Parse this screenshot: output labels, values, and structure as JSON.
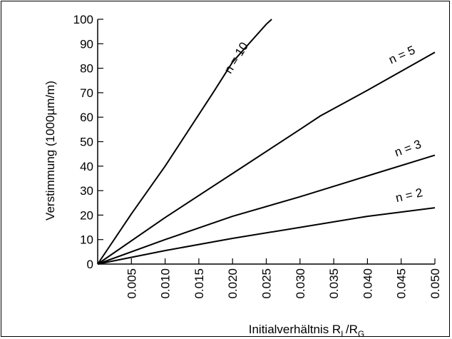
{
  "chart_data": {
    "type": "line",
    "xlabel": "Initialverhältnis R",
    "xlabel_sub1": "L",
    "xlabel_slash": "/R",
    "xlabel_sub2": "G",
    "ylabel": "Verstimmung (1000µm/m)",
    "xlim": [
      0,
      0.05
    ],
    "ylim": [
      0,
      100
    ],
    "x_ticks": [
      "0.005",
      "0.010",
      "0.015",
      "0.020",
      "0.025",
      "0.030",
      "0.035",
      "0.040",
      "0.045",
      "0.050"
    ],
    "x_tick_values": [
      0.005,
      0.01,
      0.015,
      0.02,
      0.025,
      0.03,
      0.035,
      0.04,
      0.045,
      0.05
    ],
    "y_ticks": [
      "0",
      "10",
      "20",
      "30",
      "40",
      "50",
      "60",
      "70",
      "80",
      "90",
      "100"
    ],
    "y_tick_values": [
      0,
      10,
      20,
      30,
      40,
      50,
      60,
      70,
      80,
      90,
      100
    ],
    "grid": false,
    "legend": "none",
    "series": [
      {
        "name": "n = 2",
        "x": [
          0,
          0.01,
          0.02,
          0.03,
          0.04,
          0.05
        ],
        "y": [
          0,
          5.5,
          10.5,
          15,
          19.5,
          23
        ]
      },
      {
        "name": "n = 3",
        "x": [
          0,
          0.01,
          0.02,
          0.03,
          0.04,
          0.05
        ],
        "y": [
          0,
          10,
          19.5,
          27.5,
          36,
          44.5
        ]
      },
      {
        "name": "n = 5",
        "x": [
          0,
          0.01,
          0.02,
          0.03,
          0.033,
          0.04,
          0.05
        ],
        "y": [
          0,
          19,
          37,
          55,
          60.5,
          71,
          86.5
        ]
      },
      {
        "name": "n = 10",
        "x": [
          0,
          0.005,
          0.01,
          0.017,
          0.02,
          0.025,
          0.0258
        ],
        "y": [
          0,
          20.5,
          40,
          69.5,
          82.5,
          98,
          100
        ]
      }
    ]
  }
}
